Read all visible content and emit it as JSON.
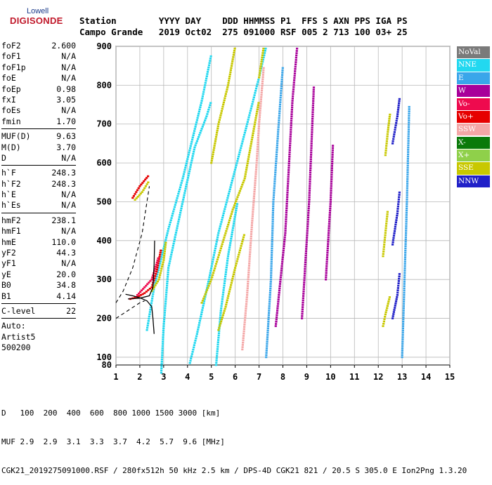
{
  "logo": {
    "line1": "Lowell",
    "line2": "DIGISONDE"
  },
  "header": {
    "keys": "Station        YYYY DAY    DDD HHMMSS P1  FFS S AXN PPS IGA PS",
    "values": "Campo Grande   2019 Oct02  275 091000 RSF 005 2 713 100 03+ 25"
  },
  "params": [
    {
      "type": "row",
      "name": "foF2",
      "value": "2.600"
    },
    {
      "type": "row",
      "name": "foF1",
      "value": "N/A"
    },
    {
      "type": "row",
      "name": "foF1p",
      "value": "N/A"
    },
    {
      "type": "row",
      "name": "foE",
      "value": "N/A"
    },
    {
      "type": "row",
      "name": "foEp",
      "value": "0.98"
    },
    {
      "type": "row",
      "name": "fxI",
      "value": "3.05"
    },
    {
      "type": "row",
      "name": "foEs",
      "value": "N/A"
    },
    {
      "type": "row",
      "name": "fmin",
      "value": "1.70"
    },
    {
      "type": "sep"
    },
    {
      "type": "row",
      "name": "MUF(D)",
      "value": "9.63"
    },
    {
      "type": "row",
      "name": "M(D)",
      "value": "3.70"
    },
    {
      "type": "row",
      "name": "D",
      "value": "N/A"
    },
    {
      "type": "sep"
    },
    {
      "type": "row",
      "name": "h`F",
      "value": "248.3"
    },
    {
      "type": "row",
      "name": "h`F2",
      "value": "248.3"
    },
    {
      "type": "row",
      "name": "h`E",
      "value": "N/A"
    },
    {
      "type": "row",
      "name": "h`Es",
      "value": "N/A"
    },
    {
      "type": "sep"
    },
    {
      "type": "row",
      "name": "hmF2",
      "value": "238.1"
    },
    {
      "type": "row",
      "name": "hmF1",
      "value": "N/A"
    },
    {
      "type": "row",
      "name": "hmE",
      "value": "110.0"
    },
    {
      "type": "row",
      "name": "yF2",
      "value": "44.3"
    },
    {
      "type": "row",
      "name": "yF1",
      "value": "N/A"
    },
    {
      "type": "row",
      "name": "yE",
      "value": "20.0"
    },
    {
      "type": "row",
      "name": "B0",
      "value": "34.8"
    },
    {
      "type": "row",
      "name": "B1",
      "value": "4.14"
    },
    {
      "type": "sep"
    },
    {
      "type": "row",
      "name": "C-level",
      "value": "22"
    },
    {
      "type": "sep"
    },
    {
      "type": "text",
      "value": "Auto:"
    },
    {
      "type": "text",
      "value": "Artist5"
    },
    {
      "type": "text",
      "value": "500200"
    }
  ],
  "legend": [
    {
      "label": "NoVal",
      "bg": "#7a7a7a",
      "fg": "#ffffff"
    },
    {
      "label": "NNE",
      "bg": "#22d8f0",
      "fg": "#ffffff"
    },
    {
      "label": "E",
      "bg": "#3aa6ea",
      "fg": "#ffffff"
    },
    {
      "label": "W",
      "bg": "#a8009a",
      "fg": "#ffffff"
    },
    {
      "label": "Vo-",
      "bg": "#ee0a4e",
      "fg": "#ffffff"
    },
    {
      "label": "Vo+",
      "bg": "#e60000",
      "fg": "#ffffff"
    },
    {
      "label": "SSW",
      "bg": "#f4a7a7",
      "fg": "#ffffff"
    },
    {
      "label": "X-",
      "bg": "#0a7a0a",
      "fg": "#ffffff"
    },
    {
      "label": "X+",
      "bg": "#8fd04a",
      "fg": "#ffffff"
    },
    {
      "label": "SSE",
      "bg": "#c8c800",
      "fg": "#ffffff"
    },
    {
      "label": "NNW",
      "bg": "#2020c8",
      "fg": "#ffffff"
    }
  ],
  "chart_data": {
    "type": "scatter",
    "x_ticks": [
      "1",
      "2",
      "3",
      "4",
      "5",
      "6",
      "7",
      "8",
      "9",
      "10",
      "11",
      "12",
      "13",
      "14",
      "15"
    ],
    "y_ticks": [
      "80",
      "100",
      "200",
      "300",
      "400",
      "500",
      "600",
      "700",
      "800",
      "900"
    ],
    "xlim": [
      1,
      15
    ],
    "ylim": [
      80,
      900
    ],
    "ylog": false,
    "grid": true,
    "traces": [
      {
        "series": "NNE",
        "points": [
          [
            4.1,
            85
          ],
          [
            4.4,
            160
          ],
          [
            4.9,
            300
          ],
          [
            5.3,
            420
          ],
          [
            5.9,
            560
          ],
          [
            6.5,
            700
          ],
          [
            7.0,
            820
          ],
          [
            7.3,
            900
          ]
        ]
      },
      {
        "series": "NNE",
        "points": [
          [
            2.3,
            170
          ],
          [
            2.6,
            280
          ],
          [
            3.2,
            430
          ],
          [
            3.8,
            560
          ],
          [
            4.6,
            760
          ],
          [
            5.0,
            880
          ]
        ]
      },
      {
        "series": "NNE",
        "points": [
          [
            5.2,
            80
          ],
          [
            5.4,
            220
          ],
          [
            5.7,
            360
          ],
          [
            6.1,
            500
          ]
        ]
      },
      {
        "series": "NNE",
        "points": [
          [
            2.9,
            60
          ],
          [
            3.0,
            180
          ],
          [
            3.2,
            330
          ],
          [
            3.8,
            500
          ],
          [
            4.3,
            640
          ],
          [
            4.8,
            720
          ],
          [
            5.0,
            760
          ]
        ]
      },
      {
        "series": "SSE",
        "points": [
          [
            4.6,
            240
          ],
          [
            5.0,
            300
          ],
          [
            5.4,
            380
          ],
          [
            5.9,
            480
          ],
          [
            6.4,
            560
          ],
          [
            6.7,
            660
          ],
          [
            7.0,
            760
          ]
        ]
      },
      {
        "series": "SSE",
        "points": [
          [
            5.3,
            170
          ],
          [
            5.6,
            230
          ],
          [
            6.0,
            330
          ],
          [
            6.4,
            420
          ]
        ]
      },
      {
        "series": "SSE",
        "points": [
          [
            5.0,
            600
          ],
          [
            5.3,
            700
          ],
          [
            5.7,
            800
          ],
          [
            6.0,
            900
          ]
        ]
      },
      {
        "series": "SSE",
        "points": [
          [
            7.0,
            820
          ],
          [
            7.2,
            900
          ]
        ]
      },
      {
        "series": "SSW",
        "points": [
          [
            6.3,
            120
          ],
          [
            6.5,
            260
          ],
          [
            6.7,
            440
          ],
          [
            6.9,
            600
          ],
          [
            7.0,
            700
          ],
          [
            7.2,
            850
          ]
        ]
      },
      {
        "series": "E",
        "points": [
          [
            7.3,
            100
          ],
          [
            7.5,
            300
          ],
          [
            7.6,
            500
          ],
          [
            7.8,
            680
          ],
          [
            8.0,
            850
          ]
        ]
      },
      {
        "series": "W",
        "points": [
          [
            7.7,
            180
          ],
          [
            8.1,
            420
          ],
          [
            8.4,
            760
          ],
          [
            8.6,
            900
          ]
        ]
      },
      {
        "series": "W",
        "points": [
          [
            8.8,
            200
          ],
          [
            9.1,
            500
          ],
          [
            9.3,
            800
          ]
        ]
      },
      {
        "series": "W",
        "points": [
          [
            9.8,
            300
          ],
          [
            10.0,
            500
          ],
          [
            10.1,
            650
          ]
        ]
      },
      {
        "series": "NNW",
        "points": [
          [
            12.6,
            200
          ],
          [
            12.8,
            260
          ],
          [
            12.9,
            320
          ]
        ]
      },
      {
        "series": "NNW",
        "points": [
          [
            12.6,
            390
          ],
          [
            12.8,
            470
          ],
          [
            12.9,
            530
          ]
        ]
      },
      {
        "series": "NNW",
        "points": [
          [
            12.6,
            650
          ],
          [
            12.8,
            720
          ],
          [
            12.9,
            770
          ]
        ]
      },
      {
        "series": "SSE",
        "points": [
          [
            12.2,
            180
          ],
          [
            12.3,
            210
          ],
          [
            12.5,
            260
          ]
        ]
      },
      {
        "series": "SSE",
        "points": [
          [
            12.2,
            360
          ],
          [
            12.3,
            420
          ],
          [
            12.4,
            480
          ]
        ]
      },
      {
        "series": "SSE",
        "points": [
          [
            12.3,
            620
          ],
          [
            12.4,
            680
          ],
          [
            12.5,
            730
          ]
        ]
      },
      {
        "series": "E",
        "points": [
          [
            13.0,
            100
          ],
          [
            13.1,
            300
          ],
          [
            13.2,
            500
          ],
          [
            13.3,
            750
          ]
        ]
      },
      {
        "series": "Vo+",
        "points": [
          [
            1.6,
            250
          ],
          [
            1.9,
            255
          ],
          [
            2.2,
            265
          ],
          [
            2.5,
            280
          ],
          [
            2.7,
            320
          ],
          [
            2.9,
            380
          ]
        ]
      },
      {
        "series": "Vo-",
        "points": [
          [
            1.9,
            260
          ],
          [
            2.2,
            280
          ],
          [
            2.5,
            300
          ],
          [
            2.8,
            360
          ]
        ]
      },
      {
        "series": "SSE",
        "points": [
          [
            2.5,
            270
          ],
          [
            2.8,
            300
          ],
          [
            3.0,
            350
          ],
          [
            3.1,
            400
          ]
        ]
      },
      {
        "series": "Vo+",
        "points": [
          [
            1.7,
            510
          ],
          [
            2.0,
            540
          ],
          [
            2.4,
            570
          ]
        ]
      },
      {
        "series": "SSE",
        "points": [
          [
            1.8,
            505
          ],
          [
            2.1,
            525
          ],
          [
            2.4,
            555
          ]
        ]
      }
    ],
    "profile": [
      [
        2.6,
        160
      ],
      [
        2.55,
        200
      ],
      [
        2.5,
        230
      ],
      [
        2.3,
        245
      ],
      [
        2.0,
        253
      ],
      [
        1.7,
        258
      ],
      [
        1.4,
        262
      ]
    ],
    "trace_fit": [
      [
        1.5,
        250
      ],
      [
        2.0,
        252
      ],
      [
        2.4,
        258
      ],
      [
        2.55,
        280
      ],
      [
        2.6,
        340
      ],
      [
        2.62,
        400
      ]
    ],
    "dashed_guides": [
      [
        [
          1.0,
          240
        ],
        [
          1.3,
          270
        ],
        [
          1.7,
          330
        ],
        [
          2.1,
          420
        ],
        [
          2.4,
          540
        ]
      ],
      [
        [
          1.0,
          200
        ],
        [
          1.5,
          220
        ],
        [
          2.0,
          240
        ],
        [
          2.2,
          245
        ]
      ]
    ]
  },
  "footer": {
    "d_label": "D",
    "d_values": "   100  200  400  600  800 1000 1500 3000 [km]",
    "muf_label": "MUF",
    "muf_values": " 2.9  2.9  3.1  3.3  3.7  4.2  5.7  9.6 [MHz]",
    "info": "CGK21_2019275091000.RSF / 280fx512h 50 kHz 2.5 km / DPS-4D CGK21 821 / 20.5 S 305.0 E Ion2Png 1.3.20"
  }
}
